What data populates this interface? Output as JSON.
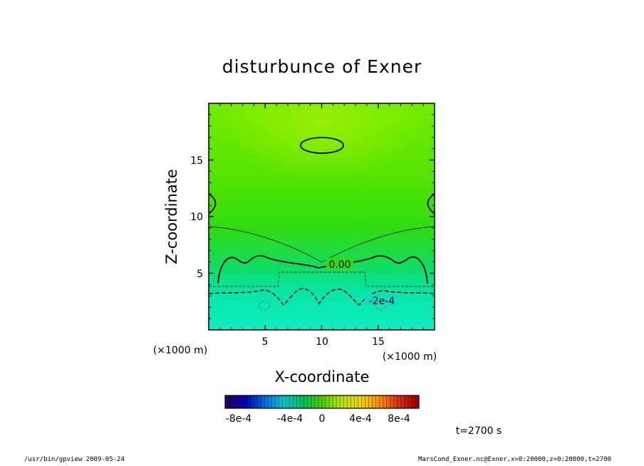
{
  "chart_data": {
    "type": "heatmap",
    "title": "disturbunce of Exner",
    "xlabel": "X-coordinate",
    "ylabel": "Z-coordinate",
    "x_unit": "(×1000 m)",
    "y_unit": "(×1000 m)",
    "x_ticks": [
      "5",
      "10",
      "15"
    ],
    "y_ticks": [
      "5",
      "10",
      "15"
    ],
    "xlim": [
      0,
      20
    ],
    "ylim": [
      0,
      20
    ],
    "contour_labels": [
      "0.00",
      "-2e-4"
    ],
    "colorbar": {
      "tick_labels": [
        "-8e-4",
        "-4e-4",
        "0",
        "4e-4",
        "8e-4"
      ],
      "range": [
        -0.001,
        0.001
      ],
      "colors": [
        "#2a0060",
        "#0000c0",
        "#0070e0",
        "#00c8c8",
        "#00c060",
        "#50d000",
        "#b4e600",
        "#f0d800",
        "#ff9000",
        "#e03010",
        "#a00000"
      ]
    },
    "time_label": "t=2700 s"
  },
  "footer": {
    "left": "/usr/bin/gpview   2009-05-24",
    "right": "MarsCond_Exner.nc@Exner,x=0:20000,z=0:20000,t=2700"
  }
}
